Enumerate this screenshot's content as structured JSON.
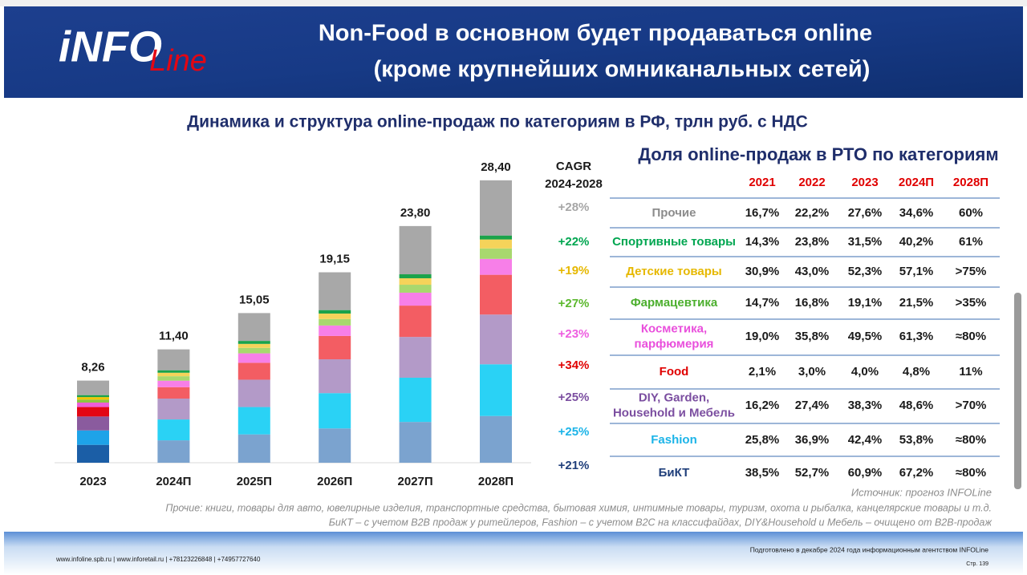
{
  "header": {
    "logo": [
      "iNFO",
      "Line"
    ],
    "title": [
      "Non-Food в основном будет продаваться online",
      "(кроме крупнейших омниканальных сетей)"
    ]
  },
  "chart_data": {
    "type": "bar",
    "stacked": true,
    "title": "Динамика и структура online-продаж по категориям в РФ, трлн руб. с НДС",
    "categories": [
      "2023",
      "2024П",
      "2025П",
      "2026П",
      "2027П",
      "2028П"
    ],
    "series": [
      {
        "color": "#7ba3cf",
        "first_color": "#1b5ea6",
        "values": [
          1.8,
          2.25,
          2.85,
          3.45,
          4.1,
          4.7
        ]
      },
      {
        "color": "#2ad2f5",
        "first_color": "#1ea3e8",
        "values": [
          1.45,
          2.1,
          2.75,
          3.55,
          4.45,
          5.2
        ]
      },
      {
        "color": "#b39ac8",
        "first_color": "#8a5b9e",
        "values": [
          1.4,
          2.1,
          2.75,
          3.4,
          4.1,
          5.0
        ]
      },
      {
        "color": "#f35d63",
        "first_color": "#e30613",
        "values": [
          0.95,
          1.15,
          1.7,
          2.35,
          3.15,
          4.0
        ]
      },
      {
        "color": "#f77fe8",
        "first_color": "#ee5ed8",
        "values": [
          0.45,
          0.65,
          0.95,
          1.05,
          1.3,
          1.6
        ]
      },
      {
        "color": "#a8d86e",
        "first_color": "#8cc63f",
        "values": [
          0.3,
          0.45,
          0.55,
          0.65,
          0.8,
          1.05
        ]
      },
      {
        "color": "#f5d35a",
        "first_color": "#f2c500",
        "values": [
          0.25,
          0.35,
          0.4,
          0.55,
          0.65,
          0.9
        ]
      },
      {
        "color": "#1aa34a",
        "first_color": "#1aa34a",
        "values": [
          0.2,
          0.25,
          0.3,
          0.35,
          0.4,
          0.4
        ]
      },
      {
        "color": "#a8a8a8",
        "first_color": "#a8a8a8",
        "values": [
          1.46,
          2.1,
          2.8,
          3.8,
          4.85,
          5.55
        ]
      }
    ],
    "totals": [
      8.26,
      11.4,
      15.05,
      19.15,
      23.8,
      28.4
    ],
    "total_labels": [
      "8,26",
      "11,40",
      "15,05",
      "19,15",
      "23,80",
      "28,40"
    ],
    "ylim": [
      0,
      30
    ]
  },
  "cagr": {
    "title": [
      "CAGR",
      "2024-2028"
    ],
    "values": [
      28,
      22,
      19,
      27,
      23,
      34,
      25,
      25,
      21
    ],
    "labels": [
      "+28%",
      "+22%",
      "+19%",
      "+27%",
      "+23%",
      "+34%",
      "+25%",
      "+25%",
      "+21%"
    ],
    "colors": [
      "#a6a6a6",
      "#00a650",
      "#e6b800",
      "#5cb82e",
      "#ee5ee0",
      "#e00000",
      "#7b4ea0",
      "#1cb4e8",
      "#1f3e7a"
    ]
  },
  "table": {
    "title": "Доля online-продаж в РТО по категориям",
    "columns": [
      "2021",
      "2022",
      "2023",
      "2024П",
      "2028П"
    ],
    "column_color": "#e00000",
    "rows": [
      {
        "name": [
          "Прочие"
        ],
        "color": "#8c8c8c",
        "cells": [
          "16,7%",
          "22,2%",
          "27,6%",
          "34,6%",
          "60%"
        ]
      },
      {
        "name": [
          "Спортивные товары"
        ],
        "color": "#00a650",
        "cells": [
          "14,3%",
          "23,8%",
          "31,5%",
          "40,2%",
          "61%"
        ]
      },
      {
        "name": [
          "Детские товары"
        ],
        "color": "#e6b800",
        "cells": [
          "30,9%",
          "43,0%",
          "52,3%",
          "57,1%",
          ">75%"
        ]
      },
      {
        "name": [
          "Фармацевтика"
        ],
        "color": "#4caf2e",
        "cells": [
          "14,7%",
          "16,8%",
          "19,1%",
          "21,5%",
          ">35%"
        ]
      },
      {
        "name": [
          "Косметика,",
          "парфюмерия"
        ],
        "color": "#e94fdc",
        "cells": [
          "19,0%",
          "35,8%",
          "49,5%",
          "61,3%",
          "≈80%"
        ]
      },
      {
        "name": [
          "Food"
        ],
        "color": "#e00000",
        "cells": [
          "2,1%",
          "3,0%",
          "4,0%",
          "4,8%",
          "11%"
        ]
      },
      {
        "name": [
          "DIY, Garden,",
          "Household и Мебель"
        ],
        "color": "#7b4ea0",
        "cells": [
          "16,2%",
          "27,4%",
          "38,3%",
          "48,6%",
          ">70%"
        ]
      },
      {
        "name": [
          "Fashion"
        ],
        "color": "#1cb4e8",
        "cells": [
          "25,8%",
          "36,9%",
          "42,4%",
          "53,8%",
          "≈80%"
        ]
      },
      {
        "name": [
          "БиКТ"
        ],
        "color": "#1f3e7a",
        "cells": [
          "38,5%",
          "52,7%",
          "60,9%",
          "67,2%",
          "≈80%"
        ]
      }
    ]
  },
  "notes": {
    "source": "Источник:  прогноз INFOLine",
    "lines": [
      "Прочие: книги, товары для авто, ювелирные изделия, транспортные средства, бытовая химия, интимные товары, туризм, охота и рыбалка, канцелярские товары и т.д.",
      "БиКТ – с учетом B2B продаж у ритейлеров, Fashion – с учетом B2C на классифайдах, DIY&Household и Мебель – очищено от B2B-продаж"
    ]
  },
  "footer": {
    "contacts": "www.infoline.spb.ru | www.inforetail.ru | +78123226848 | +74957727640",
    "prepared": "Подготовлено в декабре 2024 года информационным агентством INFOLine",
    "page": "Стр. 139"
  }
}
